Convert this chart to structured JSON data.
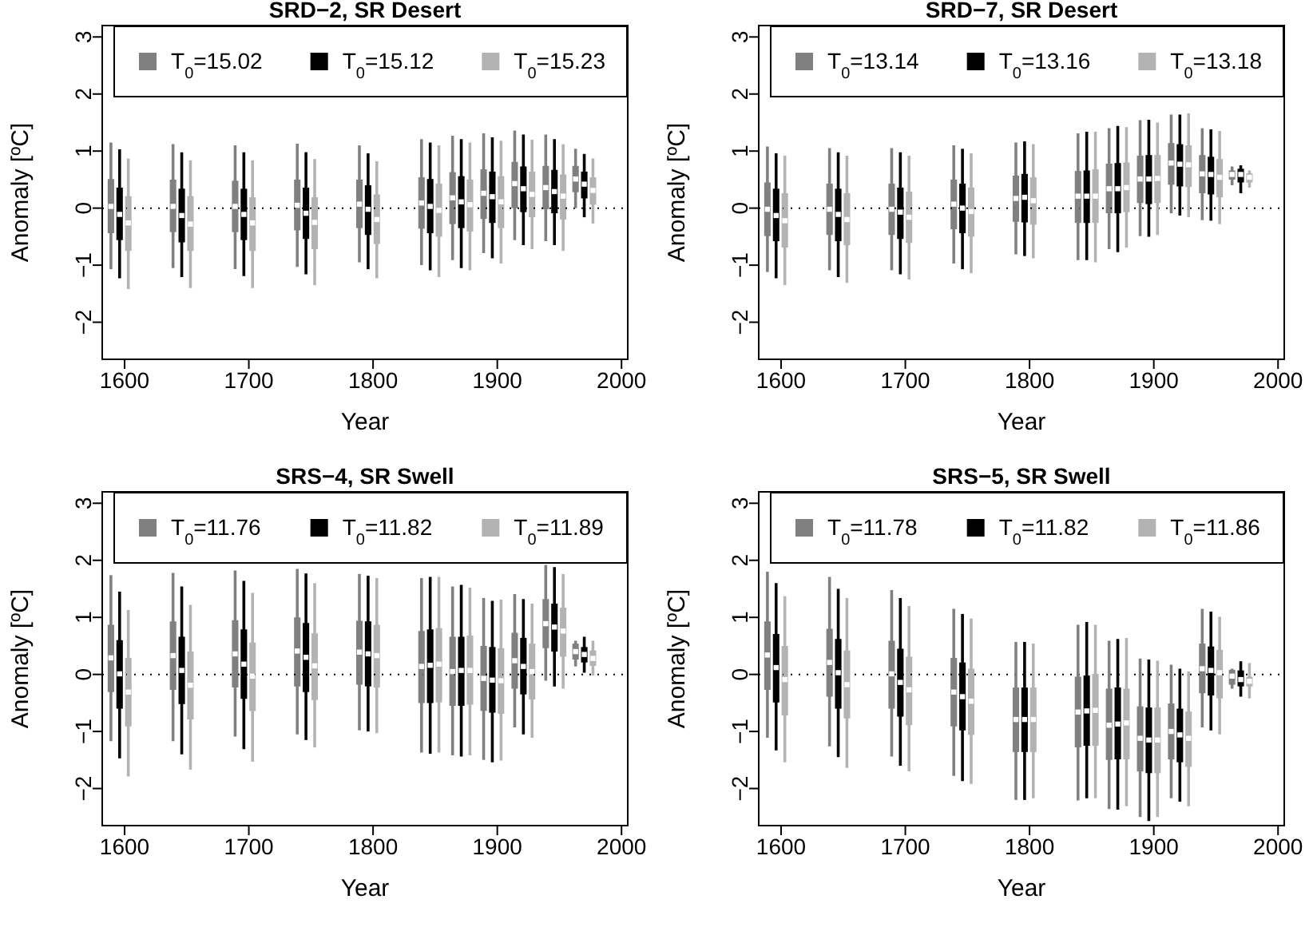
{
  "chart_data": [
    {
      "type": "box",
      "title": "SRD−2, SR Desert",
      "xlabel": "Year",
      "ylabel": "Anomaly [ºC]",
      "xlim": [
        1582,
        2005
      ],
      "xticks": [
        1600,
        1700,
        1800,
        1900,
        2000
      ],
      "ylim": [
        -2.65,
        3.2
      ],
      "yticks": [
        -2,
        -1,
        0,
        1,
        2,
        3
      ],
      "legend": "top",
      "marker": "square",
      "ref_lines": [
        {
          "axis": "y",
          "value": 0,
          "line_style": "dotted",
          "color": "#000000"
        }
      ],
      "series": [
        {
          "name": "T$_{0}$=15.02",
          "color": "#808080",
          "x": [
            1589,
            1639,
            1689,
            1739,
            1789,
            1839,
            1864,
            1889,
            1914,
            1939,
            1963
          ],
          "boxes": [
            {
              "low": -1.07,
              "q1": -0.44,
              "median": 0.03,
              "q3": 0.51,
              "high": 1.15
            },
            {
              "low": -1.05,
              "q1": -0.42,
              "median": 0.03,
              "q3": 0.5,
              "high": 1.12
            },
            {
              "low": -1.07,
              "q1": -0.42,
              "median": 0.03,
              "q3": 0.48,
              "high": 1.1
            },
            {
              "low": -1.03,
              "q1": -0.39,
              "median": 0.05,
              "q3": 0.5,
              "high": 1.13
            },
            {
              "low": -0.95,
              "q1": -0.35,
              "median": 0.07,
              "q3": 0.5,
              "high": 1.1
            },
            {
              "low": -1.0,
              "q1": -0.36,
              "median": 0.09,
              "q3": 0.54,
              "high": 1.21
            },
            {
              "low": -0.91,
              "q1": -0.28,
              "median": 0.18,
              "q3": 0.63,
              "high": 1.27
            },
            {
              "low": -0.79,
              "q1": -0.19,
              "median": 0.26,
              "q3": 0.68,
              "high": 1.31
            },
            {
              "low": -0.56,
              "q1": 0.0,
              "median": 0.43,
              "q3": 0.81,
              "high": 1.36
            },
            {
              "low": -0.58,
              "q1": -0.02,
              "median": 0.36,
              "q3": 0.74,
              "high": 1.29
            },
            {
              "low": 0.0,
              "q1": 0.28,
              "median": 0.51,
              "q3": 0.74,
              "high": 1.04
            }
          ]
        },
        {
          "name": "T$_{0}$=15.12",
          "color": "#000000",
          "x": [
            1596,
            1646,
            1696,
            1746,
            1796,
            1846,
            1871,
            1896,
            1921,
            1946,
            1970
          ],
          "boxes": [
            {
              "low": -1.23,
              "q1": -0.56,
              "median": -0.11,
              "q3": 0.36,
              "high": 1.03
            },
            {
              "low": -1.21,
              "q1": -0.6,
              "median": -0.13,
              "q3": 0.34,
              "high": 0.98
            },
            {
              "low": -1.19,
              "q1": -0.56,
              "median": -0.11,
              "q3": 0.34,
              "high": 0.98
            },
            {
              "low": -1.16,
              "q1": -0.54,
              "median": -0.09,
              "q3": 0.36,
              "high": 0.98
            },
            {
              "low": -1.07,
              "q1": -0.47,
              "median": -0.02,
              "q3": 0.4,
              "high": 0.96
            },
            {
              "low": -1.09,
              "q1": -0.44,
              "median": 0.03,
              "q3": 0.51,
              "high": 1.15
            },
            {
              "low": -1.05,
              "q1": -0.35,
              "median": 0.11,
              "q3": 0.56,
              "high": 1.21
            },
            {
              "low": -0.88,
              "q1": -0.26,
              "median": 0.2,
              "q3": 0.64,
              "high": 1.24
            },
            {
              "low": -0.65,
              "q1": -0.07,
              "median": 0.34,
              "q3": 0.73,
              "high": 1.29
            },
            {
              "low": -0.65,
              "q1": -0.09,
              "median": 0.29,
              "q3": 0.67,
              "high": 1.21
            },
            {
              "low": -0.16,
              "q1": 0.17,
              "median": 0.42,
              "q3": 0.64,
              "high": 0.95
            }
          ]
        },
        {
          "name": "T$_{0}$=15.23",
          "color": "#b3b3b3",
          "x": [
            1603,
            1653,
            1703,
            1753,
            1803,
            1853,
            1878,
            1903,
            1928,
            1953,
            1977
          ],
          "boxes": [
            {
              "low": -1.42,
              "q1": -0.75,
              "median": -0.26,
              "q3": 0.21,
              "high": 0.87
            },
            {
              "low": -1.4,
              "q1": -0.75,
              "median": -0.28,
              "q3": 0.21,
              "high": 0.84
            },
            {
              "low": -1.4,
              "q1": -0.75,
              "median": -0.26,
              "q3": 0.19,
              "high": 0.84
            },
            {
              "low": -1.35,
              "q1": -0.72,
              "median": -0.25,
              "q3": 0.19,
              "high": 0.86
            },
            {
              "low": -1.23,
              "q1": -0.63,
              "median": -0.2,
              "q3": 0.24,
              "high": 0.82
            },
            {
              "low": -1.21,
              "q1": -0.5,
              "median": -0.04,
              "q3": 0.43,
              "high": 1.1
            },
            {
              "low": -1.09,
              "q1": -0.41,
              "median": 0.06,
              "q3": 0.5,
              "high": 1.15
            },
            {
              "low": -0.97,
              "q1": -0.35,
              "median": 0.11,
              "q3": 0.56,
              "high": 1.18
            },
            {
              "low": -0.72,
              "q1": -0.16,
              "median": 0.24,
              "q3": 0.64,
              "high": 1.2
            },
            {
              "low": -0.75,
              "q1": -0.2,
              "median": 0.21,
              "q3": 0.59,
              "high": 1.12
            },
            {
              "low": -0.27,
              "q1": 0.06,
              "median": 0.31,
              "q3": 0.54,
              "high": 0.87
            }
          ]
        }
      ]
    },
    {
      "type": "box",
      "title": "SRD−7, SR Desert",
      "xlabel": "Year",
      "ylabel": "Anomaly [ºC]",
      "xlim": [
        1582,
        2005
      ],
      "xticks": [
        1600,
        1700,
        1800,
        1900,
        2000
      ],
      "ylim": [
        -2.65,
        3.2
      ],
      "yticks": [
        -2,
        -1,
        0,
        1,
        2,
        3
      ],
      "legend": "top",
      "marker": "square",
      "ref_lines": [
        {
          "axis": "y",
          "value": 0,
          "line_style": "dotted",
          "color": "#000000"
        }
      ],
      "series": [
        {
          "name": "T$_{0}$=13.14",
          "color": "#808080",
          "x": [
            1589,
            1639,
            1689,
            1739,
            1789,
            1839,
            1864,
            1889,
            1914,
            1939,
            1963
          ],
          "boxes": [
            {
              "low": -1.12,
              "q1": -0.49,
              "median": -0.02,
              "q3": 0.45,
              "high": 1.08
            },
            {
              "low": -1.09,
              "q1": -0.47,
              "median": -0.02,
              "q3": 0.43,
              "high": 1.05
            },
            {
              "low": -1.09,
              "q1": -0.47,
              "median": -0.02,
              "q3": 0.43,
              "high": 1.05
            },
            {
              "low": -0.97,
              "q1": -0.37,
              "median": 0.07,
              "q3": 0.5,
              "high": 1.1
            },
            {
              "low": -0.81,
              "q1": -0.24,
              "median": 0.17,
              "q3": 0.57,
              "high": 1.15
            },
            {
              "low": -0.91,
              "q1": -0.26,
              "median": 0.21,
              "q3": 0.65,
              "high": 1.31
            },
            {
              "low": -0.72,
              "q1": -0.09,
              "median": 0.34,
              "q3": 0.78,
              "high": 1.4
            },
            {
              "low": -0.49,
              "q1": 0.09,
              "median": 0.51,
              "q3": 0.92,
              "high": 1.54
            },
            {
              "low": -0.09,
              "q1": 0.41,
              "median": 0.79,
              "q3": 1.14,
              "high": 1.64
            },
            {
              "low": -0.21,
              "q1": 0.26,
              "median": 0.6,
              "q3": 0.93,
              "high": 1.4
            },
            {
              "low": 0.4,
              "q1": 0.5,
              "median": 0.59,
              "q3": 0.66,
              "high": 0.73
            }
          ]
        },
        {
          "name": "T$_{0}$=13.16",
          "color": "#000000",
          "x": [
            1596,
            1646,
            1696,
            1746,
            1796,
            1846,
            1871,
            1896,
            1921,
            1946,
            1970
          ],
          "boxes": [
            {
              "low": -1.23,
              "q1": -0.58,
              "median": -0.13,
              "q3": 0.34,
              "high": 0.96
            },
            {
              "low": -1.21,
              "q1": -0.58,
              "median": -0.11,
              "q3": 0.34,
              "high": 0.98
            },
            {
              "low": -1.16,
              "q1": -0.54,
              "median": -0.07,
              "q3": 0.36,
              "high": 0.98
            },
            {
              "low": -1.07,
              "q1": -0.44,
              "median": 0.0,
              "q3": 0.43,
              "high": 1.04
            },
            {
              "low": -0.84,
              "q1": -0.25,
              "median": 0.19,
              "q3": 0.6,
              "high": 1.17
            },
            {
              "low": -0.91,
              "q1": -0.26,
              "median": 0.21,
              "q3": 0.66,
              "high": 1.34
            },
            {
              "low": -0.77,
              "q1": -0.09,
              "median": 0.34,
              "q3": 0.79,
              "high": 1.44
            },
            {
              "low": -0.5,
              "q1": 0.07,
              "median": 0.51,
              "q3": 0.93,
              "high": 1.55
            },
            {
              "low": -0.13,
              "q1": 0.38,
              "median": 0.77,
              "q3": 1.12,
              "high": 1.64
            },
            {
              "low": -0.22,
              "q1": 0.24,
              "median": 0.59,
              "q3": 0.9,
              "high": 1.38
            },
            {
              "low": 0.26,
              "q1": 0.45,
              "median": 0.59,
              "q3": 0.69,
              "high": 0.75
            }
          ]
        },
        {
          "name": "T$_{0}$=13.18",
          "color": "#b3b3b3",
          "x": [
            1603,
            1653,
            1703,
            1753,
            1803,
            1853,
            1878,
            1903,
            1928,
            1953,
            1977
          ],
          "boxes": [
            {
              "low": -1.35,
              "q1": -0.69,
              "median": -0.22,
              "q3": 0.26,
              "high": 0.92
            },
            {
              "low": -1.31,
              "q1": -0.65,
              "median": -0.2,
              "q3": 0.26,
              "high": 0.92
            },
            {
              "low": -1.25,
              "q1": -0.61,
              "median": -0.16,
              "q3": 0.29,
              "high": 0.92
            },
            {
              "low": -1.14,
              "q1": -0.5,
              "median": -0.06,
              "q3": 0.36,
              "high": 0.96
            },
            {
              "low": -0.88,
              "q1": -0.29,
              "median": 0.13,
              "q3": 0.54,
              "high": 1.12
            },
            {
              "low": -0.95,
              "q1": -0.26,
              "median": 0.21,
              "q3": 0.68,
              "high": 1.34
            },
            {
              "low": -0.69,
              "q1": -0.07,
              "median": 0.36,
              "q3": 0.8,
              "high": 1.42
            },
            {
              "low": -0.47,
              "q1": 0.09,
              "median": 0.52,
              "q3": 0.93,
              "high": 1.5
            },
            {
              "low": -0.16,
              "q1": 0.37,
              "median": 0.76,
              "q3": 1.1,
              "high": 1.66
            },
            {
              "low": -0.28,
              "q1": 0.19,
              "median": 0.54,
              "q3": 0.86,
              "high": 1.35
            },
            {
              "low": 0.36,
              "q1": 0.45,
              "median": 0.54,
              "q3": 0.61,
              "high": 0.66
            }
          ]
        }
      ]
    },
    {
      "type": "box",
      "title": "SRS−4, SR Swell",
      "xlabel": "Year",
      "ylabel": "Anomaly [ºC]",
      "xlim": [
        1582,
        2005
      ],
      "xticks": [
        1600,
        1700,
        1800,
        1900,
        2000
      ],
      "ylim": [
        -2.65,
        3.2
      ],
      "yticks": [
        -2,
        -1,
        0,
        1,
        2,
        3
      ],
      "legend": "top",
      "marker": "square",
      "ref_lines": [
        {
          "axis": "y",
          "value": 0,
          "line_style": "dotted",
          "color": "#000000"
        }
      ],
      "series": [
        {
          "name": "T$_{0}$=11.76",
          "color": "#808080",
          "x": [
            1589,
            1639,
            1689,
            1739,
            1789,
            1839,
            1864,
            1889,
            1914,
            1939,
            1963
          ],
          "boxes": [
            {
              "low": -1.17,
              "q1": -0.31,
              "median": 0.29,
              "q3": 0.87,
              "high": 1.74
            },
            {
              "low": -1.17,
              "q1": -0.27,
              "median": 0.33,
              "q3": 0.93,
              "high": 1.78
            },
            {
              "low": -1.09,
              "q1": -0.23,
              "median": 0.36,
              "q3": 0.95,
              "high": 1.82
            },
            {
              "low": -1.05,
              "q1": -0.21,
              "median": 0.41,
              "q3": 1.0,
              "high": 1.85
            },
            {
              "low": -0.98,
              "q1": -0.18,
              "median": 0.39,
              "q3": 0.94,
              "high": 1.76
            },
            {
              "low": -1.37,
              "q1": -0.5,
              "median": 0.14,
              "q3": 0.76,
              "high": 1.69
            },
            {
              "low": -1.42,
              "q1": -0.55,
              "median": 0.05,
              "q3": 0.66,
              "high": 1.54
            },
            {
              "low": -1.5,
              "q1": -0.64,
              "median": -0.07,
              "q3": 0.5,
              "high": 1.34
            },
            {
              "low": -0.93,
              "q1": -0.25,
              "median": 0.24,
              "q3": 0.73,
              "high": 1.41
            },
            {
              "low": -0.11,
              "q1": 0.46,
              "median": 0.89,
              "q3": 1.32,
              "high": 1.92
            },
            {
              "low": 0.14,
              "q1": 0.26,
              "median": 0.4,
              "q3": 0.54,
              "high": 0.59
            }
          ]
        },
        {
          "name": "T$_{0}$=11.82",
          "color": "#000000",
          "x": [
            1596,
            1646,
            1696,
            1746,
            1796,
            1846,
            1871,
            1896,
            1921,
            1946,
            1970
          ],
          "boxes": [
            {
              "low": -1.47,
              "q1": -0.6,
              "median": 0.01,
              "q3": 0.6,
              "high": 1.45
            },
            {
              "low": -1.4,
              "q1": -0.52,
              "median": 0.07,
              "q3": 0.66,
              "high": 1.54
            },
            {
              "low": -1.31,
              "q1": -0.43,
              "median": 0.18,
              "q3": 0.79,
              "high": 1.64
            },
            {
              "low": -1.15,
              "q1": -0.31,
              "median": 0.3,
              "q3": 0.9,
              "high": 1.77
            },
            {
              "low": -1.0,
              "q1": -0.21,
              "median": 0.36,
              "q3": 0.93,
              "high": 1.73
            },
            {
              "low": -1.39,
              "q1": -0.5,
              "median": 0.16,
              "q3": 0.79,
              "high": 1.71
            },
            {
              "low": -1.44,
              "q1": -0.55,
              "median": 0.07,
              "q3": 0.66,
              "high": 1.57
            },
            {
              "low": -1.54,
              "q1": -0.67,
              "median": -0.1,
              "q3": 0.48,
              "high": 1.29
            },
            {
              "low": -1.05,
              "q1": -0.35,
              "median": 0.14,
              "q3": 0.64,
              "high": 1.32
            },
            {
              "low": -0.21,
              "q1": 0.4,
              "median": 0.83,
              "q3": 1.24,
              "high": 1.88
            },
            {
              "low": 0.03,
              "q1": 0.21,
              "median": 0.35,
              "q3": 0.48,
              "high": 0.66
            }
          ]
        },
        {
          "name": "T$_{0}$=11.89",
          "color": "#b3b3b3",
          "x": [
            1603,
            1653,
            1703,
            1753,
            1803,
            1853,
            1878,
            1903,
            1928,
            1953,
            1977
          ],
          "boxes": [
            {
              "low": -1.79,
              "q1": -0.91,
              "median": -0.31,
              "q3": 0.29,
              "high": 1.13
            },
            {
              "low": -1.67,
              "q1": -0.79,
              "median": -0.19,
              "q3": 0.4,
              "high": 1.22
            },
            {
              "low": -1.53,
              "q1": -0.64,
              "median": -0.03,
              "q3": 0.56,
              "high": 1.43
            },
            {
              "low": -1.28,
              "q1": -0.45,
              "median": 0.15,
              "q3": 0.72,
              "high": 1.6
            },
            {
              "low": -1.03,
              "q1": -0.23,
              "median": 0.33,
              "q3": 0.87,
              "high": 1.69
            },
            {
              "low": -1.37,
              "q1": -0.49,
              "median": 0.18,
              "q3": 0.81,
              "high": 1.71
            },
            {
              "low": -1.42,
              "q1": -0.53,
              "median": 0.07,
              "q3": 0.68,
              "high": 1.52
            },
            {
              "low": -1.51,
              "q1": -0.69,
              "median": -0.11,
              "q3": 0.46,
              "high": 1.31
            },
            {
              "low": -1.11,
              "q1": -0.44,
              "median": 0.05,
              "q3": 0.54,
              "high": 1.24
            },
            {
              "low": -0.25,
              "q1": 0.31,
              "median": 0.76,
              "q3": 1.17,
              "high": 1.76
            },
            {
              "low": -0.02,
              "q1": 0.15,
              "median": 0.28,
              "q3": 0.42,
              "high": 0.59
            }
          ]
        }
      ]
    },
    {
      "type": "box",
      "title": "SRS−5, SR Swell",
      "xlabel": "Year",
      "ylabel": "Anomaly [ºC]",
      "xlim": [
        1582,
        2005
      ],
      "xticks": [
        1600,
        1700,
        1800,
        1900,
        2000
      ],
      "ylim": [
        -2.65,
        3.2
      ],
      "yticks": [
        -2,
        -1,
        0,
        1,
        2,
        3
      ],
      "legend": "top",
      "marker": "square",
      "ref_lines": [
        {
          "axis": "y",
          "value": 0,
          "line_style": "dotted",
          "color": "#000000"
        }
      ],
      "series": [
        {
          "name": "T$_{0}$=11.78",
          "color": "#808080",
          "x": [
            1589,
            1639,
            1689,
            1739,
            1789,
            1839,
            1864,
            1889,
            1914,
            1939,
            1963
          ],
          "boxes": [
            {
              "low": -1.11,
              "q1": -0.27,
              "median": 0.34,
              "q3": 0.93,
              "high": 1.8
            },
            {
              "low": -1.26,
              "q1": -0.39,
              "median": 0.21,
              "q3": 0.8,
              "high": 1.71
            },
            {
              "low": -1.44,
              "q1": -0.6,
              "median": 0.01,
              "q3": 0.59,
              "high": 1.48
            },
            {
              "low": -1.78,
              "q1": -0.91,
              "median": -0.31,
              "q3": 0.29,
              "high": 1.15
            },
            {
              "low": -2.2,
              "q1": -1.36,
              "median": -0.79,
              "q3": -0.23,
              "high": 0.57
            },
            {
              "low": -2.21,
              "q1": -1.28,
              "median": -0.66,
              "q3": -0.04,
              "high": 0.87
            },
            {
              "low": -2.36,
              "q1": -1.5,
              "median": -0.89,
              "q3": -0.25,
              "high": 0.59
            },
            {
              "low": -2.5,
              "q1": -1.7,
              "median": -1.12,
              "q3": -0.56,
              "high": 0.28
            },
            {
              "low": -2.17,
              "q1": -1.49,
              "median": -1.0,
              "q3": -0.51,
              "high": 0.17
            },
            {
              "low": -0.93,
              "q1": -0.33,
              "median": 0.1,
              "q3": 0.54,
              "high": 1.15
            },
            {
              "low": -0.25,
              "q1": -0.18,
              "median": -0.03,
              "q3": 0.08,
              "high": 0.1
            }
          ]
        },
        {
          "name": "T$_{0}$=11.82",
          "color": "#000000",
          "x": [
            1596,
            1646,
            1696,
            1746,
            1796,
            1846,
            1871,
            1896,
            1921,
            1946,
            1970
          ],
          "boxes": [
            {
              "low": -1.33,
              "q1": -0.49,
              "median": 0.12,
              "q3": 0.71,
              "high": 1.6
            },
            {
              "low": -1.45,
              "q1": -0.6,
              "median": 0.03,
              "q3": 0.62,
              "high": 1.5
            },
            {
              "low": -1.6,
              "q1": -0.74,
              "median": -0.14,
              "q3": 0.45,
              "high": 1.34
            },
            {
              "low": -1.87,
              "q1": -0.98,
              "median": -0.39,
              "q3": 0.21,
              "high": 1.06
            },
            {
              "low": -2.2,
              "q1": -1.36,
              "median": -0.79,
              "q3": -0.23,
              "high": 0.57
            },
            {
              "low": -2.17,
              "q1": -1.25,
              "median": -0.64,
              "q3": -0.02,
              "high": 0.92
            },
            {
              "low": -2.37,
              "q1": -1.49,
              "median": -0.87,
              "q3": -0.23,
              "high": 0.62
            },
            {
              "low": -2.57,
              "q1": -1.73,
              "median": -1.15,
              "q3": -0.58,
              "high": 0.26
            },
            {
              "low": -2.23,
              "q1": -1.54,
              "median": -1.06,
              "q3": -0.6,
              "high": 0.1
            },
            {
              "low": -0.98,
              "q1": -0.37,
              "median": 0.07,
              "q3": 0.49,
              "high": 1.1
            },
            {
              "low": -0.39,
              "q1": -0.21,
              "median": -0.09,
              "q3": 0.07,
              "high": 0.23
            }
          ]
        },
        {
          "name": "T$_{0}$=11.86",
          "color": "#b3b3b3",
          "x": [
            1603,
            1653,
            1703,
            1753,
            1803,
            1853,
            1878,
            1903,
            1928,
            1953,
            1977
          ],
          "boxes": [
            {
              "low": -1.54,
              "q1": -0.72,
              "median": -0.09,
              "q3": 0.5,
              "high": 1.37
            },
            {
              "low": -1.64,
              "q1": -0.77,
              "median": -0.18,
              "q3": 0.42,
              "high": 1.34
            },
            {
              "low": -1.7,
              "q1": -0.89,
              "median": -0.27,
              "q3": 0.31,
              "high": 1.2
            },
            {
              "low": -1.92,
              "q1": -1.06,
              "median": -0.47,
              "q3": 0.1,
              "high": 0.98
            },
            {
              "low": -2.17,
              "q1": -1.36,
              "median": -0.79,
              "q3": -0.23,
              "high": 0.54
            },
            {
              "low": -2.17,
              "q1": -1.25,
              "median": -0.63,
              "q3": 0.01,
              "high": 0.87
            },
            {
              "low": -2.31,
              "q1": -1.49,
              "median": -0.85,
              "q3": -0.25,
              "high": 0.64
            },
            {
              "low": -2.5,
              "q1": -1.73,
              "median": -1.15,
              "q3": -0.58,
              "high": 0.24
            },
            {
              "low": -2.31,
              "q1": -1.62,
              "median": -1.12,
              "q3": -0.65,
              "high": 0.05
            },
            {
              "low": -1.05,
              "q1": -0.42,
              "median": 0.03,
              "q3": 0.43,
              "high": 1.01
            },
            {
              "low": -0.42,
              "q1": -0.21,
              "median": -0.12,
              "q3": -0.04,
              "high": 0.2
            }
          ]
        }
      ]
    }
  ]
}
